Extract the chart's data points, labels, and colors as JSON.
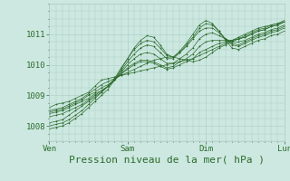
{
  "bg_color": "#cce8e0",
  "grid_color": "#aaccC4",
  "line_color": "#2d6b2d",
  "marker_color": "#2d6b2d",
  "xlabel": "Pression niveau de la mer( hPa )",
  "xlabel_fontsize": 8,
  "tick_color": "#2d6b2d",
  "tick_fontsize": 6.5,
  "xlim": [
    0,
    72
  ],
  "ylim": [
    1007.5,
    1012.0
  ],
  "yticks": [
    1008,
    1009,
    1010,
    1011
  ],
  "xtick_positions": [
    0,
    24,
    48,
    72
  ],
  "xtick_labels": [
    "Ven",
    "Sam",
    "Dim",
    "Lun"
  ],
  "series": [
    [
      1008.6,
      1008.7,
      1008.75,
      1008.8,
      1008.9,
      1009.0,
      1009.1,
      1009.3,
      1009.5,
      1009.55,
      1009.6,
      1009.65,
      1009.7,
      1009.75,
      1009.8,
      1009.85,
      1009.9,
      1009.95,
      1010.0,
      1010.05,
      1010.1,
      1010.15,
      1010.2,
      1010.3,
      1010.4,
      1010.5,
      1010.6,
      1010.7,
      1010.8,
      1010.9,
      1011.0,
      1011.1,
      1011.2,
      1011.25,
      1011.3,
      1011.35,
      1011.4
    ],
    [
      1008.5,
      1008.55,
      1008.6,
      1008.7,
      1008.8,
      1008.9,
      1009.05,
      1009.2,
      1009.35,
      1009.45,
      1009.55,
      1009.65,
      1009.75,
      1009.85,
      1009.95,
      1010.05,
      1010.15,
      1010.2,
      1010.25,
      1010.25,
      1010.2,
      1010.15,
      1010.1,
      1010.15,
      1010.25,
      1010.4,
      1010.55,
      1010.65,
      1010.75,
      1010.85,
      1010.95,
      1011.05,
      1011.15,
      1011.2,
      1011.3,
      1011.35,
      1011.45
    ],
    [
      1008.45,
      1008.5,
      1008.55,
      1008.65,
      1008.75,
      1008.85,
      1009.0,
      1009.1,
      1009.25,
      1009.35,
      1009.5,
      1009.7,
      1009.85,
      1010.0,
      1010.1,
      1010.1,
      1010.05,
      1009.95,
      1009.85,
      1009.9,
      1010.0,
      1010.1,
      1010.2,
      1010.4,
      1010.5,
      1010.6,
      1010.7,
      1010.75,
      1010.8,
      1010.85,
      1010.9,
      1011.0,
      1011.1,
      1011.15,
      1011.25,
      1011.3,
      1011.4
    ],
    [
      1008.4,
      1008.45,
      1008.5,
      1008.6,
      1008.7,
      1008.8,
      1008.9,
      1009.05,
      1009.15,
      1009.3,
      1009.5,
      1009.7,
      1009.9,
      1010.05,
      1010.15,
      1010.15,
      1010.1,
      1010.0,
      1009.9,
      1009.95,
      1010.1,
      1010.2,
      1010.35,
      1010.6,
      1010.75,
      1010.8,
      1010.8,
      1010.8,
      1010.8,
      1010.85,
      1010.9,
      1011.0,
      1011.1,
      1011.15,
      1011.25,
      1011.3,
      1011.4
    ],
    [
      1008.3,
      1008.35,
      1008.4,
      1008.5,
      1008.6,
      1008.7,
      1008.85,
      1009.0,
      1009.15,
      1009.3,
      1009.5,
      1009.75,
      1010.0,
      1010.2,
      1010.35,
      1010.4,
      1010.35,
      1010.2,
      1010.05,
      1010.05,
      1010.2,
      1010.35,
      1010.55,
      1010.85,
      1011.0,
      1011.05,
      1010.95,
      1010.85,
      1010.75,
      1010.75,
      1010.8,
      1010.9,
      1011.0,
      1011.05,
      1011.15,
      1011.2,
      1011.3
    ],
    [
      1008.1,
      1008.15,
      1008.2,
      1008.35,
      1008.5,
      1008.65,
      1008.8,
      1008.95,
      1009.1,
      1009.3,
      1009.5,
      1009.8,
      1010.1,
      1010.35,
      1010.55,
      1010.65,
      1010.6,
      1010.4,
      1010.2,
      1010.2,
      1010.4,
      1010.6,
      1010.85,
      1011.1,
      1011.2,
      1011.2,
      1011.05,
      1010.85,
      1010.7,
      1010.65,
      1010.75,
      1010.85,
      1010.95,
      1011.0,
      1011.1,
      1011.15,
      1011.25
    ],
    [
      1008.0,
      1008.05,
      1008.1,
      1008.2,
      1008.35,
      1008.5,
      1008.7,
      1008.9,
      1009.1,
      1009.3,
      1009.55,
      1009.9,
      1010.2,
      1010.5,
      1010.7,
      1010.8,
      1010.75,
      1010.55,
      1010.3,
      1010.25,
      1010.4,
      1010.65,
      1010.9,
      1011.2,
      1011.35,
      1011.3,
      1011.1,
      1010.85,
      1010.65,
      1010.6,
      1010.7,
      1010.8,
      1010.9,
      1010.95,
      1011.05,
      1011.1,
      1011.2
    ],
    [
      1007.9,
      1007.95,
      1008.0,
      1008.1,
      1008.25,
      1008.4,
      1008.6,
      1008.8,
      1009.0,
      1009.2,
      1009.5,
      1009.85,
      1010.2,
      1010.55,
      1010.8,
      1010.95,
      1010.9,
      1010.65,
      1010.35,
      1010.25,
      1010.45,
      1010.7,
      1011.0,
      1011.3,
      1011.45,
      1011.35,
      1011.1,
      1010.8,
      1010.55,
      1010.5,
      1010.6,
      1010.7,
      1010.8,
      1010.85,
      1010.95,
      1011.0,
      1011.1
    ]
  ]
}
